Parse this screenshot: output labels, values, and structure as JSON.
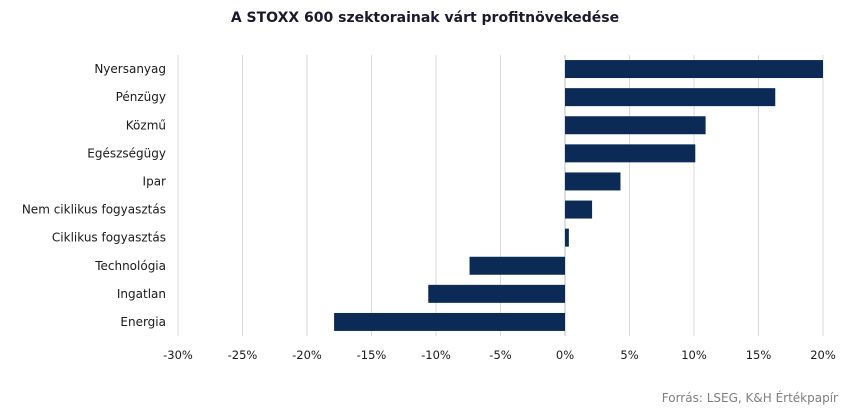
{
  "chart_data": {
    "type": "bar",
    "orientation": "horizontal",
    "title": "A STOXX 600  szektorainak várt profitnövekedése",
    "categories": [
      "Nyersanyag",
      "Pénzügy",
      "Közmű",
      "Egészségügy",
      "Ipar",
      "Nem ciklikus fogyasztás",
      "Ciklikus fogyasztás",
      "Technológia",
      "Ingatlan",
      "Energia"
    ],
    "values": [
      20.0,
      16.3,
      10.9,
      10.1,
      4.3,
      2.1,
      0.3,
      -7.4,
      -10.6,
      -17.9
    ],
    "xlim": [
      -30,
      20
    ],
    "xticks": [
      -30,
      -25,
      -20,
      -15,
      -10,
      -5,
      0,
      5,
      10,
      15,
      20
    ],
    "xtick_labels": [
      "-30%",
      "-25%",
      "-20%",
      "-15%",
      "-10%",
      "-5%",
      "0%",
      "5%",
      "10%",
      "15%",
      "20%"
    ],
    "xlabel": "",
    "ylabel": "",
    "grid": "vertical",
    "bar_color": "#0b2a55",
    "grid_color": "#d9d9d9"
  },
  "source": "Forrás: LSEG, K&H Értékpapír"
}
